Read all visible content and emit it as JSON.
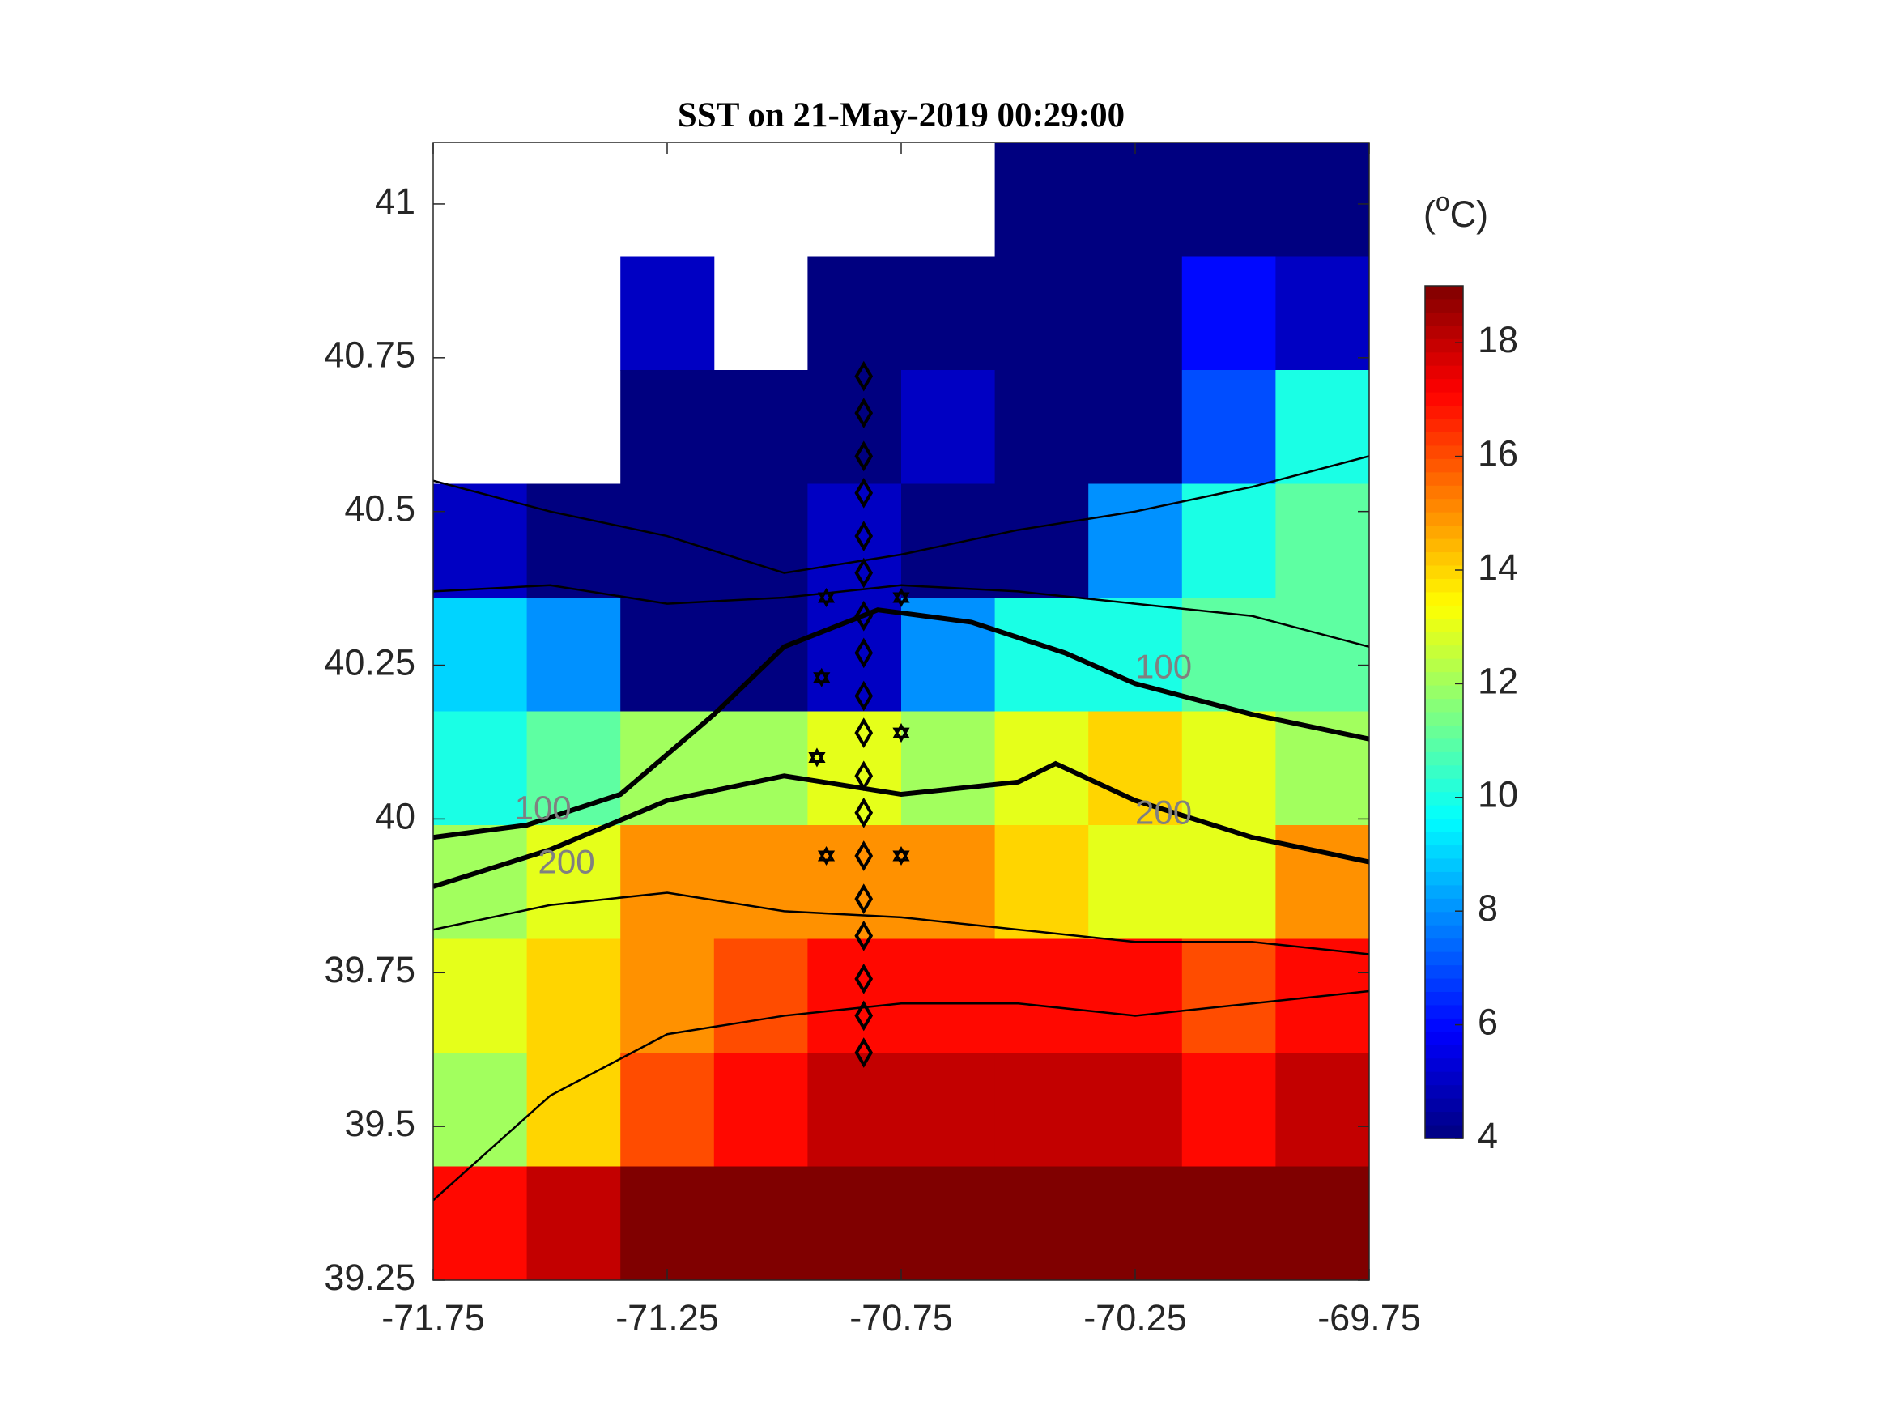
{
  "chart_data": {
    "type": "heatmap",
    "title": "SST on 21-May-2019 00:29:00",
    "lon": [
      -71.75,
      -71.55,
      -71.35,
      -71.15,
      -70.95,
      -70.75,
      -70.55,
      -70.35,
      -70.15,
      -69.95,
      -69.75
    ],
    "lat": [
      41.1,
      40.915,
      40.73,
      40.545,
      40.36,
      40.175,
      39.99,
      39.805,
      39.62,
      39.435,
      39.25
    ],
    "z": [
      [
        null,
        null,
        null,
        null,
        null,
        null,
        4,
        4,
        4,
        4
      ],
      [
        null,
        null,
        5,
        null,
        4,
        4,
        4,
        4,
        6,
        5
      ],
      [
        null,
        null,
        4,
        4,
        4,
        5,
        4,
        4,
        7,
        10
      ],
      [
        5,
        4,
        4,
        4,
        5,
        4,
        4,
        8,
        10,
        11
      ],
      [
        9,
        8,
        4,
        4,
        5,
        8,
        10,
        10,
        11,
        11
      ],
      [
        10,
        11,
        12,
        12,
        13,
        12,
        13,
        14,
        13,
        12
      ],
      [
        12,
        13,
        15,
        15,
        15,
        15,
        14,
        13,
        13,
        15
      ],
      [
        13,
        14,
        15,
        16,
        17,
        17,
        17,
        17,
        16,
        17
      ],
      [
        12,
        14,
        16,
        17,
        18,
        18,
        18,
        18,
        17,
        18
      ],
      [
        17,
        18,
        19,
        19,
        19,
        19,
        19,
        19,
        19,
        19
      ]
    ],
    "xlim": [
      -71.75,
      -69.75
    ],
    "xticks": [
      -71.75,
      -71.25,
      -70.75,
      -70.25,
      -69.75
    ],
    "ylim": [
      39.25,
      41.1
    ],
    "yticks": [
      39.25,
      39.5,
      39.75,
      40,
      40.25,
      40.5,
      40.75,
      41
    ],
    "clim": [
      4,
      19
    ],
    "cticks": [
      4,
      6,
      8,
      10,
      12,
      14,
      16,
      18
    ],
    "colorbar_label": [
      "(",
      "o",
      "C)"
    ],
    "contours": [
      {
        "level": 100,
        "x": [
          -71.75,
          -71.55,
          -71.35,
          -71.15,
          -71.0,
          -70.8,
          -70.6,
          -70.4,
          -70.25,
          -70.0,
          -69.75
        ],
        "y": [
          39.97,
          39.99,
          40.04,
          40.17,
          40.28,
          40.34,
          40.32,
          40.27,
          40.22,
          40.17,
          40.13
        ]
      },
      {
        "level": 200,
        "x": [
          -71.75,
          -71.5,
          -71.25,
          -71.0,
          -70.75,
          -70.5,
          -70.42,
          -70.25,
          -70.0,
          -69.75
        ],
        "y": [
          39.89,
          39.95,
          40.03,
          40.07,
          40.04,
          40.06,
          40.09,
          40.03,
          39.97,
          39.93
        ]
      }
    ],
    "thin_contours": [
      {
        "x": [
          -71.75,
          -71.5,
          -71.25,
          -71.0,
          -70.75,
          -70.5,
          -70.25,
          -70.0,
          -69.75
        ],
        "y": [
          39.82,
          39.86,
          39.88,
          39.85,
          39.84,
          39.82,
          39.8,
          39.8,
          39.78
        ]
      },
      {
        "x": [
          -71.75,
          -71.5,
          -71.25,
          -71.0,
          -70.75,
          -70.5,
          -70.25,
          -70.0,
          -69.75
        ],
        "y": [
          39.38,
          39.55,
          39.65,
          39.68,
          39.7,
          39.7,
          39.68,
          39.7,
          39.72
        ]
      },
      {
        "x": [
          -71.75,
          -71.5,
          -71.25,
          -71.0,
          -70.75,
          -70.5,
          -70.25,
          -70.0,
          -69.75
        ],
        "y": [
          40.55,
          40.5,
          40.46,
          40.4,
          40.43,
          40.47,
          40.5,
          40.54,
          40.59
        ]
      },
      {
        "x": [
          -71.75,
          -71.5,
          -71.25,
          -71.0,
          -70.75,
          -70.5,
          -70.25,
          -70.0,
          -69.75
        ],
        "y": [
          40.37,
          40.38,
          40.35,
          40.36,
          40.38,
          40.37,
          40.35,
          40.33,
          40.28
        ]
      }
    ],
    "stations": {
      "x": [
        -70.83,
        -70.83,
        -70.83,
        -70.83,
        -70.83,
        -70.83,
        -70.83,
        -70.83,
        -70.83,
        -70.83,
        -70.83,
        -70.83,
        -70.83,
        -70.83,
        -70.83,
        -70.83,
        -70.83,
        -70.83
      ],
      "y": [
        40.72,
        40.66,
        40.59,
        40.53,
        40.46,
        40.4,
        40.33,
        40.27,
        40.2,
        40.14,
        40.07,
        40.01,
        39.94,
        39.87,
        39.81,
        39.74,
        39.68,
        39.62
      ]
    },
    "stars": {
      "x": [
        -70.91,
        -70.75,
        -70.92,
        -70.93,
        -70.75,
        -70.91,
        -70.75
      ],
      "y": [
        40.36,
        40.36,
        40.23,
        40.1,
        40.14,
        39.94,
        39.94
      ]
    }
  }
}
